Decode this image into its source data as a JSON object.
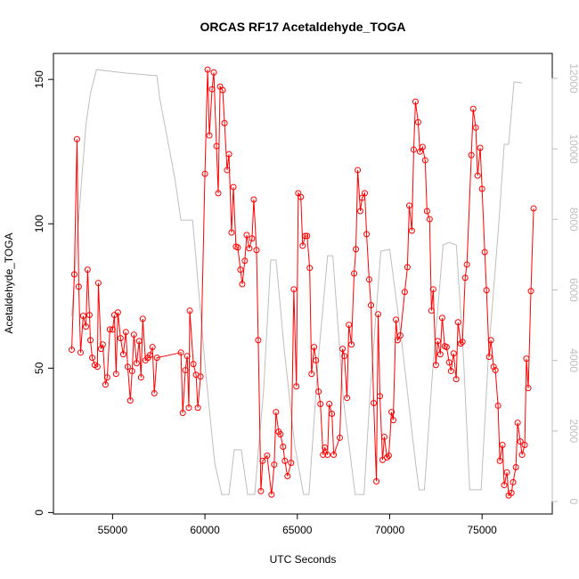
{
  "chart_data": {
    "type": "line",
    "title": "ORCAS RF17 Acetaldehyde_TOGA",
    "xlabel": "UTC Seconds",
    "ylabel": "Acetaldehyde_TOGA",
    "xlim": [
      51800,
      78800
    ],
    "ylim": [
      -0.5,
      159
    ],
    "y2lim": [
      -354,
      12707
    ],
    "xticks": [
      55000,
      60000,
      65000,
      70000,
      75000
    ],
    "yticks": [
      0,
      50,
      100,
      150
    ],
    "y2ticks": [
      0,
      2000,
      4000,
      6000,
      8000,
      10000,
      12000
    ],
    "series": [
      {
        "name": "Acetaldehyde_TOGA",
        "color": "#ff0000",
        "markers": true,
        "x": [
          52790,
          52930,
          53075,
          53170,
          53270,
          53410,
          53560,
          53650,
          53750,
          53800,
          53900,
          54040,
          54180,
          54230,
          54375,
          54470,
          54615,
          54710,
          54855,
          55000,
          55100,
          55190,
          55290,
          55430,
          55580,
          55720,
          55820,
          55960,
          56060,
          56155,
          56300,
          56440,
          56540,
          56635,
          56780,
          56920,
          57020,
          57160,
          57260,
          57400,
          58700,
          58800,
          58940,
          59040,
          59130,
          59180,
          59375,
          59520,
          59615,
          59760,
          60000,
          60145,
          60240,
          60385,
          60480,
          60625,
          60720,
          60820,
          60960,
          61060,
          61200,
          61300,
          61440,
          61540,
          61680,
          61780,
          61920,
          62020,
          62160,
          62260,
          62400,
          62550,
          62645,
          62790,
          62885,
          63030,
          63125,
          63365,
          63605,
          63750,
          63845,
          63990,
          64085,
          64230,
          64325,
          64470,
          64665,
          64810,
          64950,
          65050,
          65190,
          65290,
          65430,
          65530,
          65670,
          65770,
          65910,
          66010,
          66150,
          66250,
          66395,
          66490,
          66635,
          66730,
          66875,
          66970,
          67300,
          67450,
          67550,
          67690,
          67790,
          67930,
          68075,
          68170,
          68270,
          68410,
          68510,
          68650,
          68750,
          68890,
          68990,
          69135,
          69280,
          69375,
          69470,
          69615,
          69710,
          69855,
          69950,
          70100,
          70190,
          70340,
          70430,
          70575,
          70815,
          70960,
          71060,
          71200,
          71300,
          71395,
          71540,
          71635,
          71780,
          71920,
          72020,
          72160,
          72260,
          72355,
          72500,
          72600,
          72740,
          72840,
          72980,
          73080,
          73220,
          73320,
          73460,
          73600,
          73700,
          73845,
          73940,
          74085,
          74180,
          74420,
          74520,
          74660,
          74760,
          74900,
          75000,
          75145,
          75240,
          75385,
          75480,
          75625,
          75720,
          75865,
          75960,
          76105,
          76200,
          76345,
          76440,
          76590,
          76680,
          76830,
          76925,
          77070,
          77165,
          77310,
          77400,
          77500,
          77645,
          77790
        ],
        "values": [
          56.4,
          82.5,
          129.3,
          78.2,
          55.4,
          68.1,
          64.4,
          84.1,
          68.4,
          59.7,
          53.6,
          51.1,
          50.5,
          79.5,
          56.7,
          58.2,
          44.3,
          46.8,
          63.4,
          63.4,
          68.4,
          48.0,
          69.3,
          60.4,
          54.8,
          62.5,
          50.5,
          38.8,
          49.0,
          61.6,
          51.7,
          59.4,
          46.8,
          67.1,
          52.7,
          53.6,
          54.5,
          57.3,
          41.3,
          53.6,
          55.4,
          34.5,
          49.3,
          54.2,
          36.3,
          69.9,
          51.4,
          47.7,
          36.3,
          47.1,
          117.3,
          153.4,
          130.6,
          146.6,
          152.4,
          126.9,
          110.6,
          147.5,
          146.3,
          134.9,
          118.6,
          124.1,
          97.0,
          112.7,
          92.1,
          91.8,
          84.1,
          79.1,
          87.2,
          96.1,
          91.5,
          94.9,
          108.4,
          90.9,
          59.7,
          7.4,
          17.9,
          19.7,
          6.2,
          16.6,
          34.8,
          28.0,
          27.1,
          22.8,
          17.9,
          12.6,
          17.2,
          77.3,
          43.7,
          110.6,
          109.3,
          92.4,
          95.8,
          95.8,
          84.7,
          48.0,
          57.3,
          52.7,
          41.9,
          37.6,
          20.0,
          22.5,
          20.0,
          37.6,
          34.2,
          20.0,
          25.9,
          56.7,
          54.2,
          39.7,
          65.0,
          58.2,
          82.8,
          91.2,
          118.6,
          104.4,
          109.0,
          110.6,
          96.4,
          80.7,
          71.8,
          37.9,
          10.8,
          68.7,
          40.3,
          18.2,
          26.2,
          19.1,
          19.7,
          34.8,
          32.0,
          66.8,
          59.7,
          61.3,
          76.4,
          85.0,
          106.3,
          97.6,
          125.7,
          142.3,
          135.2,
          125.0,
          126.6,
          122.0,
          104.4,
          101.6,
          69.9,
          77.3,
          51.1,
          59.4,
          54.8,
          67.4,
          57.6,
          57.3,
          52.0,
          49.0,
          55.1,
          46.2,
          65.9,
          58.5,
          59.1,
          81.3,
          85.9,
          123.8,
          139.8,
          133.3,
          116.7,
          126.3,
          112.1,
          90.2,
          77.0,
          53.9,
          59.7,
          50.5,
          49.3,
          37.0,
          17.9,
          23.4,
          9.5,
          13.9,
          5.9,
          6.8,
          10.5,
          15.7,
          31.1,
          24.6,
          20.0,
          23.4,
          53.3,
          43.1,
          76.7,
          105.3
        ]
      },
      {
        "name": "Altitude",
        "color": "#bebebe",
        "axis": "y2",
        "markers": false,
        "x": [
          52790,
          53220,
          53560,
          53800,
          54130,
          55720,
          57400,
          57550,
          58370,
          58700,
          59330,
          59470,
          60050,
          60530,
          60910,
          61300,
          61590,
          61970,
          62310,
          62690,
          63170,
          63560,
          63850,
          64280,
          64860,
          65340,
          65630,
          66150,
          66640,
          66920,
          67500,
          68130,
          68610,
          68940,
          69520,
          70000,
          70630,
          71400,
          71590,
          71880,
          72310,
          72890,
          73220,
          73610,
          73990,
          74330,
          74950,
          75340,
          75910,
          76200,
          76440,
          76730,
          77170
        ],
        "values": [
          5250,
          8400,
          10690,
          11570,
          12250,
          12150,
          12075,
          11440,
          9170,
          7980,
          7980,
          7150,
          3610,
          1090,
          200,
          200,
          1465,
          1465,
          200,
          200,
          3110,
          6850,
          6850,
          4370,
          1590,
          200,
          200,
          4120,
          6970,
          6970,
          2850,
          200,
          200,
          3110,
          7100,
          7150,
          4620,
          1090,
          330,
          330,
          3610,
          7270,
          7350,
          7270,
          4120,
          330,
          330,
          4120,
          7910,
          10130,
          10130,
          11900,
          11870
        ]
      }
    ]
  }
}
